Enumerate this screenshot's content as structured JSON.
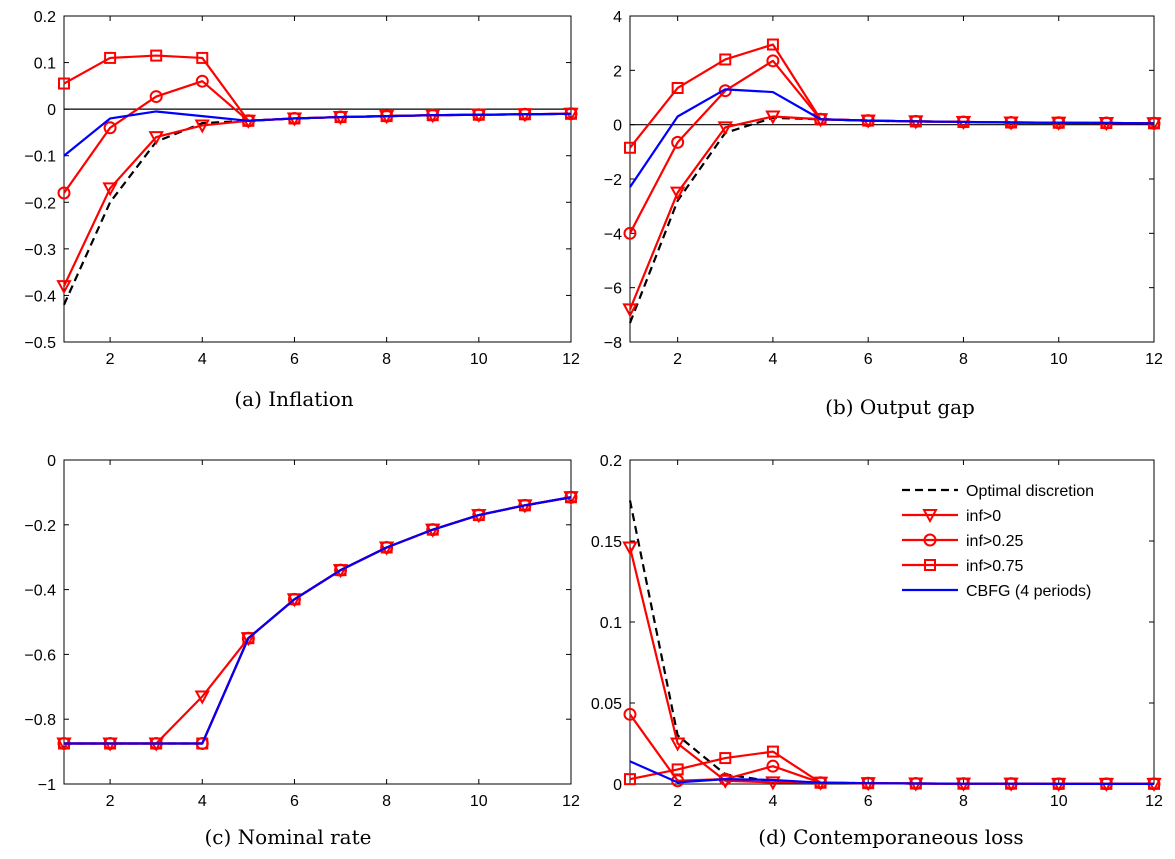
{
  "chart_data": [
    {
      "type": "line",
      "caption": "(a) Inflation",
      "xlim": [
        1,
        12
      ],
      "ylim": [
        -0.5,
        0.2
      ],
      "xticks": [
        2,
        4,
        6,
        8,
        10,
        12
      ],
      "yticks": [
        -0.5,
        -0.4,
        -0.3,
        -0.2,
        -0.1,
        0,
        0.1,
        0.2
      ],
      "ytick_labels": [
        "−0.5",
        "−0.4",
        "−0.3",
        "−0.2",
        "−0.1",
        "0",
        "0.1",
        "0.2"
      ],
      "zero_line": true,
      "x": [
        1,
        2,
        3,
        4,
        5,
        6,
        7,
        8,
        9,
        10,
        11,
        12
      ],
      "series": [
        {
          "name": "Optimal discretion",
          "values": [
            -0.42,
            -0.2,
            -0.07,
            -0.03,
            -0.025,
            -0.02,
            -0.017,
            -0.015,
            -0.013,
            -0.012,
            -0.011,
            -0.01
          ]
        },
        {
          "name": "inf>0",
          "values": [
            -0.38,
            -0.17,
            -0.06,
            -0.035,
            -0.025,
            -0.02,
            -0.017,
            -0.015,
            -0.013,
            -0.012,
            -0.011,
            -0.01
          ]
        },
        {
          "name": "inf>0.25",
          "values": [
            -0.18,
            -0.04,
            0.027,
            0.06,
            -0.025,
            -0.02,
            -0.017,
            -0.015,
            -0.013,
            -0.012,
            -0.011,
            -0.01
          ]
        },
        {
          "name": "inf>0.75",
          "values": [
            0.055,
            0.11,
            0.115,
            0.11,
            -0.025,
            -0.02,
            -0.017,
            -0.015,
            -0.013,
            -0.012,
            -0.011,
            -0.01
          ]
        },
        {
          "name": "CBFG (4 periods)",
          "values": [
            -0.1,
            -0.02,
            -0.005,
            -0.015,
            -0.025,
            -0.02,
            -0.017,
            -0.015,
            -0.013,
            -0.012,
            -0.011,
            -0.01
          ]
        }
      ]
    },
    {
      "type": "line",
      "caption": "(b) Output gap",
      "xlim": [
        1,
        12
      ],
      "ylim": [
        -8,
        4
      ],
      "xticks": [
        2,
        4,
        6,
        8,
        10,
        12
      ],
      "yticks": [
        -8,
        -6,
        -4,
        -2,
        0,
        2,
        4
      ],
      "ytick_labels": [
        "−8",
        "−6",
        "−4",
        "−2",
        "0",
        "2",
        "4"
      ],
      "zero_line": true,
      "x": [
        1,
        2,
        3,
        4,
        5,
        6,
        7,
        8,
        9,
        10,
        11,
        12
      ],
      "series": [
        {
          "name": "Optimal discretion",
          "values": [
            -7.3,
            -2.8,
            -0.3,
            0.25,
            0.2,
            0.15,
            0.12,
            0.1,
            0.08,
            0.07,
            0.06,
            0.05
          ]
        },
        {
          "name": "inf>0",
          "values": [
            -6.8,
            -2.5,
            -0.1,
            0.3,
            0.2,
            0.15,
            0.12,
            0.1,
            0.08,
            0.07,
            0.06,
            0.05
          ]
        },
        {
          "name": "inf>0.25",
          "values": [
            -4.0,
            -0.65,
            1.25,
            2.35,
            0.2,
            0.15,
            0.12,
            0.1,
            0.08,
            0.07,
            0.06,
            0.05
          ]
        },
        {
          "name": "inf>0.75",
          "values": [
            -0.85,
            1.35,
            2.4,
            2.95,
            0.2,
            0.15,
            0.12,
            0.1,
            0.08,
            0.07,
            0.06,
            0.05
          ]
        },
        {
          "name": "CBFG (4 periods)",
          "values": [
            -2.3,
            0.3,
            1.3,
            1.2,
            0.2,
            0.15,
            0.12,
            0.1,
            0.08,
            0.07,
            0.06,
            0.05
          ]
        }
      ]
    },
    {
      "type": "line",
      "caption": "(c) Nominal rate",
      "xlim": [
        1,
        12
      ],
      "ylim": [
        -1,
        0
      ],
      "xticks": [
        2,
        4,
        6,
        8,
        10,
        12
      ],
      "yticks": [
        -1,
        -0.8,
        -0.6,
        -0.4,
        -0.2,
        0
      ],
      "ytick_labels": [
        "−1",
        "−0.8",
        "−0.6",
        "−0.4",
        "−0.2",
        "0"
      ],
      "zero_line": false,
      "x": [
        1,
        2,
        3,
        4,
        5,
        6,
        7,
        8,
        9,
        10,
        11,
        12
      ],
      "series": [
        {
          "name": "Optimal discretion",
          "values": [
            -0.875,
            -0.875,
            -0.875,
            -0.875,
            -0.55,
            -0.43,
            -0.34,
            -0.27,
            -0.215,
            -0.17,
            -0.14,
            -0.115
          ]
        },
        {
          "name": "inf>0",
          "values": [
            -0.875,
            -0.875,
            -0.875,
            -0.73,
            -0.55,
            -0.43,
            -0.34,
            -0.27,
            -0.215,
            -0.17,
            -0.14,
            -0.115
          ]
        },
        {
          "name": "inf>0.25",
          "values": [
            -0.875,
            -0.875,
            -0.875,
            -0.875,
            -0.55,
            -0.43,
            -0.34,
            -0.27,
            -0.215,
            -0.17,
            -0.14,
            -0.115
          ]
        },
        {
          "name": "inf>0.75",
          "values": [
            -0.875,
            -0.875,
            -0.875,
            -0.875,
            -0.55,
            -0.43,
            -0.34,
            -0.27,
            -0.215,
            -0.17,
            -0.14,
            -0.115
          ]
        },
        {
          "name": "CBFG (4 periods)",
          "values": [
            -0.875,
            -0.875,
            -0.875,
            -0.875,
            -0.55,
            -0.43,
            -0.34,
            -0.27,
            -0.215,
            -0.17,
            -0.14,
            -0.115
          ]
        }
      ]
    },
    {
      "type": "line",
      "caption": "(d) Contemporaneous loss",
      "xlim": [
        1,
        12
      ],
      "ylim": [
        0,
        0.2
      ],
      "xticks": [
        2,
        4,
        6,
        8,
        10,
        12
      ],
      "yticks": [
        0,
        0.05,
        0.1,
        0.15,
        0.2
      ],
      "ytick_labels": [
        "0",
        "0.05",
        "0.1",
        "0.15",
        "0.2"
      ],
      "zero_line": false,
      "legend": "top-right",
      "x": [
        1,
        2,
        3,
        4,
        5,
        6,
        7,
        8,
        9,
        10,
        11,
        12
      ],
      "series": [
        {
          "name": "Optimal discretion",
          "values": [
            0.175,
            0.03,
            0.006,
            0.0015,
            0.0008,
            0.0005,
            0.0003,
            0.0002,
            0.0002,
            0.0001,
            0.0001,
            0.0001
          ]
        },
        {
          "name": "inf>0",
          "values": [
            0.146,
            0.025,
            0.002,
            0.001,
            0.0008,
            0.0005,
            0.0003,
            0.0002,
            0.0002,
            0.0001,
            0.0001,
            0.0001
          ]
        },
        {
          "name": "inf>0.25",
          "values": [
            0.043,
            0.002,
            0.003,
            0.011,
            0.0008,
            0.0005,
            0.0003,
            0.0002,
            0.0002,
            0.0001,
            0.0001,
            0.0001
          ]
        },
        {
          "name": "inf>0.75",
          "values": [
            0.003,
            0.009,
            0.016,
            0.02,
            0.0008,
            0.0005,
            0.0003,
            0.0002,
            0.0002,
            0.0001,
            0.0001,
            0.0001
          ]
        },
        {
          "name": "CBFG (4 periods)",
          "values": [
            0.014,
            0.001,
            0.003,
            0.0025,
            0.0008,
            0.0005,
            0.0003,
            0.0002,
            0.0002,
            0.0001,
            0.0001,
            0.0001
          ]
        }
      ]
    }
  ],
  "series_styles": [
    {
      "color": "#000000",
      "dash": "dashed",
      "marker": "none"
    },
    {
      "color": "#ff0000",
      "dash": "solid",
      "marker": "triangle-down"
    },
    {
      "color": "#ff0000",
      "dash": "solid",
      "marker": "circle"
    },
    {
      "color": "#ff0000",
      "dash": "solid",
      "marker": "square"
    },
    {
      "color": "#0000ff",
      "dash": "solid",
      "marker": "none"
    }
  ],
  "legend": {
    "entries": [
      "Optimal discretion",
      "inf>0",
      "inf>0.25",
      "inf>0.75",
      "CBFG (4 periods)"
    ]
  }
}
